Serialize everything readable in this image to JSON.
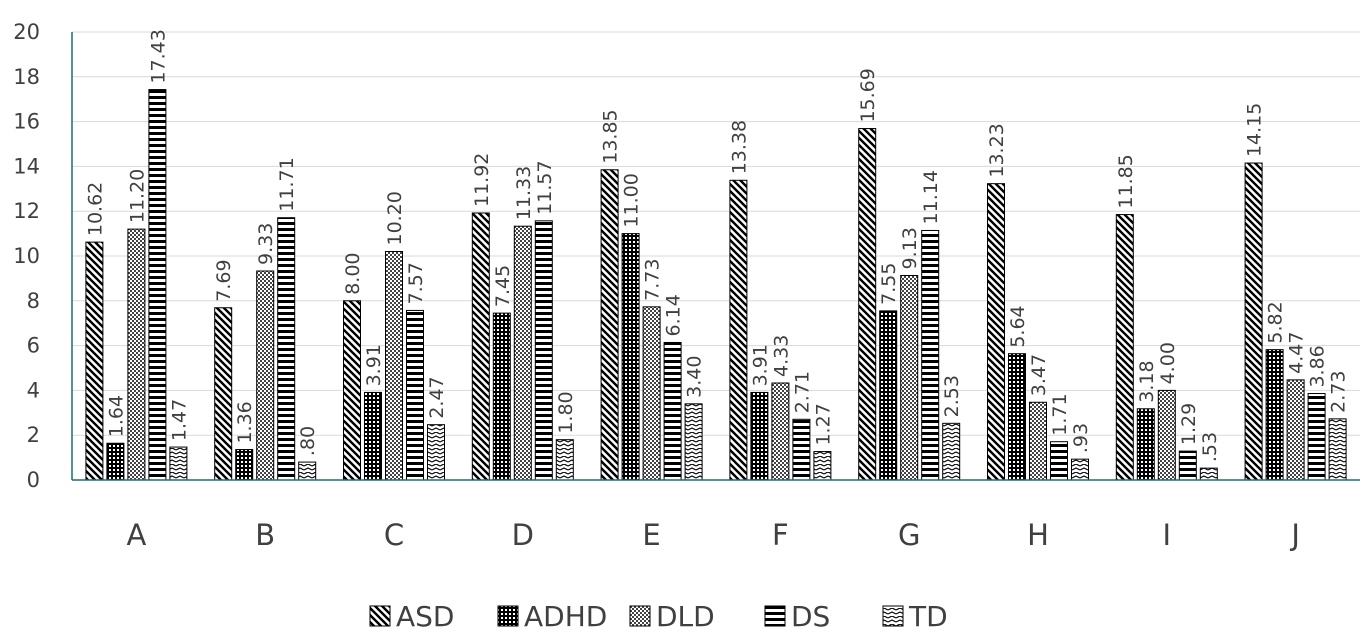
{
  "chart_data": {
    "type": "bar",
    "title": "",
    "xlabel": "",
    "ylabel": "",
    "categories": [
      "A",
      "B",
      "C",
      "D",
      "E",
      "F",
      "G",
      "H",
      "I",
      "J"
    ],
    "ylim": [
      0,
      20
    ],
    "yticks": [
      0,
      2,
      4,
      6,
      8,
      10,
      12,
      14,
      16,
      18,
      20
    ],
    "grid": true,
    "legend_position": "bottom",
    "series": [
      {
        "name": "ASD",
        "pattern": "diagonal-stripes",
        "values": [
          10.62,
          7.69,
          8.0,
          11.92,
          13.85,
          13.38,
          15.69,
          13.23,
          11.85,
          14.15
        ],
        "labels": [
          "10.62",
          "7.69",
          "8.00",
          "11.92",
          "13.85",
          "13.38",
          "15.69",
          "13.23",
          "11.85",
          "14.15"
        ]
      },
      {
        "name": "ADHD",
        "pattern": "dense-dots",
        "values": [
          1.64,
          1.36,
          3.91,
          7.45,
          11.0,
          3.91,
          7.55,
          5.64,
          3.18,
          5.82
        ],
        "labels": [
          "1.64",
          "1.36",
          "3.91",
          "7.45",
          "11.00",
          "3.91",
          "7.55",
          "5.64",
          "3.18",
          "5.82"
        ]
      },
      {
        "name": "DLD",
        "pattern": "light-checker",
        "values": [
          11.2,
          9.33,
          10.2,
          11.33,
          7.73,
          4.33,
          9.13,
          3.47,
          4.0,
          4.47
        ],
        "labels": [
          "11.20",
          "9.33",
          "10.20",
          "11.33",
          "7.73",
          "4.33",
          "9.13",
          "3.47",
          "4.00",
          "4.47"
        ]
      },
      {
        "name": "DS",
        "pattern": "horizontal-stripes",
        "values": [
          17.43,
          11.71,
          7.57,
          11.57,
          6.14,
          2.71,
          11.14,
          1.71,
          1.29,
          3.86
        ],
        "labels": [
          "17.43",
          "11.71",
          "7.57",
          "11.57",
          "6.14",
          "2.71",
          "11.14",
          "1.71",
          "1.29",
          "3.86"
        ]
      },
      {
        "name": "TD",
        "pattern": "zigzag",
        "values": [
          1.47,
          0.8,
          2.47,
          1.8,
          3.4,
          1.27,
          2.53,
          0.93,
          0.53,
          2.73
        ],
        "labels": [
          "1.47",
          ".80",
          "2.47",
          "1.80",
          "3.40",
          "1.27",
          "2.53",
          ".93",
          ".53",
          "2.73"
        ]
      }
    ],
    "colors": {
      "bar_stroke": "#000000",
      "pattern": "#000000",
      "axis": "#1f6b7a",
      "grid": "#d9d9d9",
      "text": "#404040"
    }
  }
}
